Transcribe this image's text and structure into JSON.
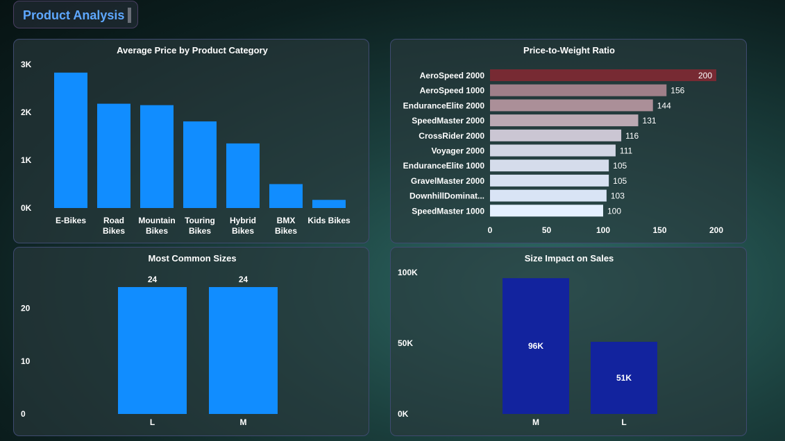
{
  "header": {
    "title": "Product Analysis"
  },
  "colors": {
    "bar_blue": "#118dff",
    "bar_navy": "#12239e",
    "accent_title": "#5ea8ff",
    "hbar_top": "#772a33",
    "hbar_bottom": "#e5f0ff"
  },
  "chart_data": [
    {
      "type": "bar",
      "title": "Average Price by Product Category",
      "categories": [
        "E-Bikes",
        "Road Bikes",
        "Mountain Bikes",
        "Touring Bikes",
        "Hybrid Bikes",
        "BMX Bikes",
        "Kids Bikes"
      ],
      "category_lines": [
        [
          "E-Bikes"
        ],
        [
          "Road",
          "Bikes"
        ],
        [
          "Mountain",
          "Bikes"
        ],
        [
          "Touring",
          "Bikes"
        ],
        [
          "Hybrid",
          "Bikes"
        ],
        [
          "BMX",
          "Bikes"
        ],
        [
          "Kids Bikes"
        ]
      ],
      "values": [
        2830,
        2180,
        2150,
        1810,
        1350,
        500,
        170
      ],
      "ylim": [
        0,
        3000
      ],
      "yticks": [
        {
          "v": 0,
          "t": "0K"
        },
        {
          "v": 1000,
          "t": "1K"
        },
        {
          "v": 2000,
          "t": "2K"
        },
        {
          "v": 3000,
          "t": "3K"
        }
      ],
      "grid": false,
      "color": "#118dff"
    },
    {
      "type": "bar",
      "orientation": "horizontal",
      "title": "Price-to-Weight Ratio",
      "categories": [
        "AeroSpeed 2000",
        "AeroSpeed 1000",
        "EnduranceElite 2000",
        "SpeedMaster 2000",
        "CrossRider 2000",
        "Voyager 2000",
        "EnduranceElite 1000",
        "GravelMaster 2000",
        "DownhillDominat...",
        "SpeedMaster 1000"
      ],
      "values": [
        200,
        156,
        144,
        131,
        116,
        111,
        105,
        105,
        103,
        100
      ],
      "data_labels": [
        "200",
        "156",
        "144",
        "131",
        "116",
        "111",
        "105",
        "105",
        "103",
        "100"
      ],
      "xlim": [
        0,
        200
      ],
      "xticks": [
        {
          "v": 0,
          "t": "0"
        },
        {
          "v": 50,
          "t": "50"
        },
        {
          "v": 100,
          "t": "100"
        },
        {
          "v": 150,
          "t": "150"
        },
        {
          "v": 200,
          "t": "200"
        }
      ],
      "colors": [
        "#772a33",
        "#9f7f89",
        "#ab8f98",
        "#bba9b3",
        "#cbc6d3",
        "#d2d6e4",
        "#d5dceb",
        "#d7e1f1",
        "#d9e4f5",
        "#e5f0ff"
      ],
      "grid": false
    },
    {
      "type": "bar",
      "title": "Most Common Sizes",
      "categories": [
        "L",
        "M"
      ],
      "values": [
        24,
        24
      ],
      "data_labels": [
        "24",
        "24"
      ],
      "ylim": [
        0,
        24
      ],
      "yticks": [
        {
          "v": 0,
          "t": "0"
        },
        {
          "v": 10,
          "t": "10"
        },
        {
          "v": 20,
          "t": "20"
        }
      ],
      "grid": false,
      "color": "#118dff"
    },
    {
      "type": "bar",
      "title": "Size Impact on Sales",
      "categories": [
        "M",
        "L"
      ],
      "values": [
        96000,
        51000
      ],
      "data_labels": [
        "96K",
        "51K"
      ],
      "ylim": [
        0,
        100000
      ],
      "yticks": [
        {
          "v": 0,
          "t": "0K"
        },
        {
          "v": 50000,
          "t": "50K"
        },
        {
          "v": 100000,
          "t": "100K"
        }
      ],
      "grid": false,
      "color": "#12239e"
    }
  ]
}
